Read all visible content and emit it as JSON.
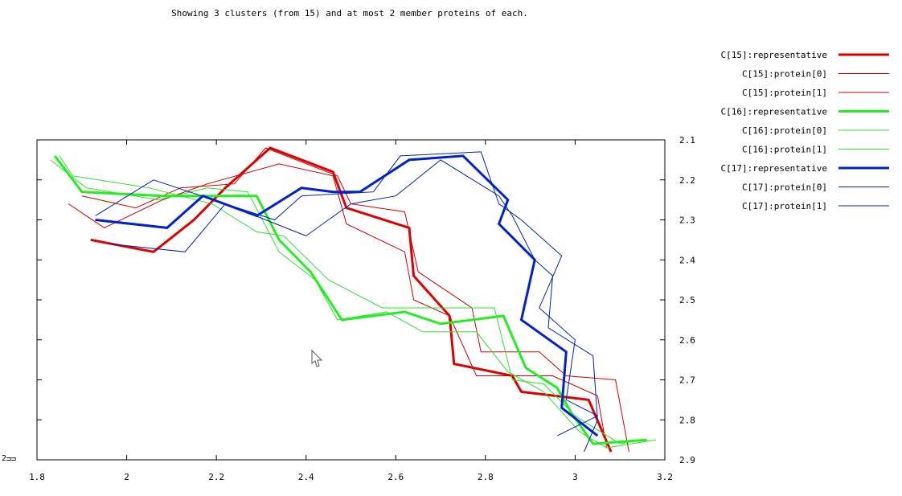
{
  "subtitle": "Showing 3 clusters (from 15) and at most 2 member proteins of each.",
  "corner_label": "2ᴝᴝ",
  "chart_data": {
    "type": "line",
    "title": "",
    "xlabel": "",
    "ylabel": "",
    "xlim": [
      1.8,
      3.2
    ],
    "ylim": [
      2.9,
      2.1
    ],
    "y_reversed": true,
    "grid": false,
    "legend_position": "right",
    "x_ticks": [
      "1.8",
      "2",
      "2.2",
      "2.4",
      "2.6",
      "2.8",
      "3",
      "3.2"
    ],
    "y_ticks": [
      "2.1",
      "2.2",
      "2.3",
      "2.4",
      "2.5",
      "2.6",
      "2.7",
      "2.8",
      "2.9"
    ],
    "series": [
      {
        "name": "C[15]:representative",
        "color": "#dd0000",
        "width": 3,
        "points": [
          [
            1.92,
            2.35
          ],
          [
            2.06,
            2.38
          ],
          [
            2.15,
            2.3
          ],
          [
            2.22,
            2.22
          ],
          [
            2.32,
            2.12
          ],
          [
            2.46,
            2.18
          ],
          [
            2.49,
            2.27
          ],
          [
            2.63,
            2.32
          ],
          [
            2.64,
            2.44
          ],
          [
            2.72,
            2.54
          ],
          [
            2.73,
            2.66
          ],
          [
            2.86,
            2.69
          ],
          [
            2.88,
            2.73
          ],
          [
            3.03,
            2.75
          ],
          [
            3.08,
            2.88
          ]
        ]
      },
      {
        "name": "C[15]:protein[0]",
        "color": "#cc0000",
        "width": 1,
        "points": [
          [
            1.87,
            2.26
          ],
          [
            1.95,
            2.32
          ],
          [
            2.08,
            2.25
          ],
          [
            2.18,
            2.21
          ],
          [
            2.34,
            2.16
          ],
          [
            2.46,
            2.19
          ],
          [
            2.49,
            2.31
          ],
          [
            2.62,
            2.38
          ],
          [
            2.64,
            2.5
          ],
          [
            2.72,
            2.54
          ],
          [
            2.78,
            2.69
          ],
          [
            2.95,
            2.69
          ],
          [
            3.05,
            2.74
          ],
          [
            3.07,
            2.87
          ]
        ]
      },
      {
        "name": "C[15]:protein[1]",
        "color": "#cc0000",
        "width": 1,
        "points": [
          [
            1.9,
            2.24
          ],
          [
            2.02,
            2.27
          ],
          [
            2.12,
            2.22
          ],
          [
            2.24,
            2.21
          ],
          [
            2.31,
            2.12
          ],
          [
            2.47,
            2.19
          ],
          [
            2.5,
            2.26
          ],
          [
            2.62,
            2.28
          ],
          [
            2.65,
            2.43
          ],
          [
            2.77,
            2.52
          ],
          [
            2.79,
            2.63
          ],
          [
            2.92,
            2.63
          ],
          [
            2.98,
            2.69
          ],
          [
            3.09,
            2.7
          ],
          [
            3.12,
            2.88
          ]
        ]
      },
      {
        "name": "C[16]:representative",
        "color": "#22ee22",
        "width": 3,
        "points": [
          [
            1.84,
            2.14
          ],
          [
            1.9,
            2.23
          ],
          [
            2.08,
            2.24
          ],
          [
            2.22,
            2.24
          ],
          [
            2.29,
            2.24
          ],
          [
            2.34,
            2.35
          ],
          [
            2.41,
            2.43
          ],
          [
            2.48,
            2.55
          ],
          [
            2.62,
            2.53
          ],
          [
            2.7,
            2.56
          ],
          [
            2.84,
            2.54
          ],
          [
            2.89,
            2.67
          ],
          [
            2.96,
            2.72
          ],
          [
            2.99,
            2.78
          ],
          [
            3.04,
            2.86
          ],
          [
            3.16,
            2.85
          ]
        ]
      },
      {
        "name": "C[16]:protein[0]",
        "color": "#33dd33",
        "width": 1,
        "points": [
          [
            1.83,
            2.15
          ],
          [
            1.91,
            2.22
          ],
          [
            2.07,
            2.25
          ],
          [
            2.18,
            2.22
          ],
          [
            2.27,
            2.23
          ],
          [
            2.34,
            2.38
          ],
          [
            2.42,
            2.45
          ],
          [
            2.47,
            2.55
          ],
          [
            2.58,
            2.53
          ],
          [
            2.66,
            2.58
          ],
          [
            2.78,
            2.58
          ],
          [
            2.85,
            2.68
          ],
          [
            2.93,
            2.73
          ],
          [
            3.01,
            2.83
          ],
          [
            3.07,
            2.87
          ],
          [
            3.18,
            2.85
          ]
        ]
      },
      {
        "name": "C[16]:protein[1]",
        "color": "#33dd33",
        "width": 1,
        "points": [
          [
            1.85,
            2.14
          ],
          [
            1.88,
            2.19
          ],
          [
            2.05,
            2.22
          ],
          [
            2.19,
            2.26
          ],
          [
            2.29,
            2.33
          ],
          [
            2.35,
            2.34
          ],
          [
            2.45,
            2.45
          ],
          [
            2.57,
            2.52
          ],
          [
            2.68,
            2.52
          ],
          [
            2.82,
            2.52
          ],
          [
            2.86,
            2.7
          ],
          [
            2.93,
            2.71
          ],
          [
            3.0,
            2.79
          ],
          [
            3.1,
            2.86
          ],
          [
            3.15,
            2.85
          ]
        ]
      },
      {
        "name": "C[17]:representative",
        "color": "#0022cc",
        "width": 3,
        "points": [
          [
            1.93,
            2.3
          ],
          [
            2.09,
            2.32
          ],
          [
            2.17,
            2.24
          ],
          [
            2.29,
            2.29
          ],
          [
            2.39,
            2.22
          ],
          [
            2.46,
            2.23
          ],
          [
            2.52,
            2.23
          ],
          [
            2.63,
            2.15
          ],
          [
            2.75,
            2.14
          ],
          [
            2.85,
            2.25
          ],
          [
            2.83,
            2.31
          ],
          [
            2.91,
            2.4
          ],
          [
            2.88,
            2.55
          ],
          [
            2.98,
            2.63
          ],
          [
            2.97,
            2.77
          ],
          [
            3.05,
            2.84
          ]
        ]
      },
      {
        "name": "C[17]:protein[0]",
        "color": "#0022aa",
        "width": 1,
        "points": [
          [
            1.96,
            2.36
          ],
          [
            2.13,
            2.38
          ],
          [
            2.22,
            2.26
          ],
          [
            2.33,
            2.3
          ],
          [
            2.39,
            2.24
          ],
          [
            2.55,
            2.23
          ],
          [
            2.61,
            2.14
          ],
          [
            2.79,
            2.13
          ],
          [
            2.83,
            2.26
          ],
          [
            2.88,
            2.3
          ],
          [
            2.97,
            2.39
          ],
          [
            2.92,
            2.52
          ],
          [
            3.0,
            2.6
          ],
          [
            2.98,
            2.75
          ],
          [
            3.05,
            2.79
          ],
          [
            2.96,
            2.84
          ]
        ]
      },
      {
        "name": "C[17]:protein[1]",
        "color": "#0022aa",
        "width": 1,
        "points": [
          [
            1.93,
            2.29
          ],
          [
            2.06,
            2.2
          ],
          [
            2.22,
            2.26
          ],
          [
            2.4,
            2.34
          ],
          [
            2.5,
            2.26
          ],
          [
            2.6,
            2.24
          ],
          [
            2.7,
            2.15
          ],
          [
            2.83,
            2.24
          ],
          [
            2.86,
            2.29
          ],
          [
            2.91,
            2.4
          ],
          [
            2.95,
            2.44
          ],
          [
            2.94,
            2.57
          ],
          [
            3.04,
            2.64
          ],
          [
            3.05,
            2.8
          ],
          [
            3.02,
            2.88
          ]
        ]
      }
    ]
  }
}
